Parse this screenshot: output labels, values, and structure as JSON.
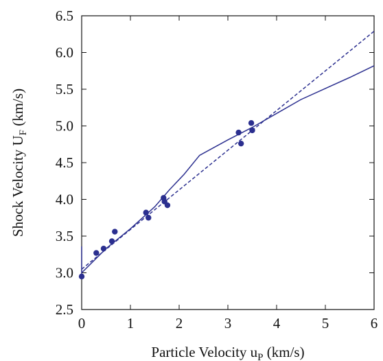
{
  "chart_data": {
    "type": "scatter",
    "title": "",
    "xlabel": "Particle Velocity u",
    "xlabel_subscript": "P",
    "xlabel_suffix": " (km/s)",
    "ylabel": "Shock Velocity U",
    "ylabel_subscript": "F",
    "ylabel_suffix": " (km/s)",
    "xlim": [
      0,
      6
    ],
    "ylim": [
      2.5,
      6.5
    ],
    "x_ticks": [
      0,
      1,
      2,
      3,
      4,
      5,
      6
    ],
    "x_tick_labels": [
      "0",
      "1",
      "2",
      "3",
      "4",
      "5",
      "6"
    ],
    "y_ticks": [
      2.5,
      3.0,
      3.5,
      4.0,
      4.5,
      5.0,
      5.5,
      6.0,
      6.5
    ],
    "y_tick_labels": [
      "2.5",
      "3.0",
      "3.5",
      "4.0",
      "4.5",
      "5.0",
      "5.5",
      "6.0",
      "6.5"
    ],
    "grid": false,
    "color": "#2b2f8f",
    "series": [
      {
        "kind": "points",
        "points": [
          [
            0.0,
            2.95
          ],
          [
            0.3,
            3.27
          ],
          [
            0.45,
            3.33
          ],
          [
            0.62,
            3.43
          ],
          [
            0.68,
            3.56
          ],
          [
            1.32,
            3.82
          ],
          [
            1.37,
            3.75
          ],
          [
            1.68,
            4.02
          ],
          [
            1.7,
            3.97
          ],
          [
            1.76,
            3.92
          ],
          [
            3.22,
            4.91
          ],
          [
            3.27,
            4.76
          ],
          [
            3.48,
            5.04
          ],
          [
            3.5,
            4.94
          ]
        ]
      },
      {
        "kind": "solid-line",
        "points": [
          [
            0.0,
            3.36
          ],
          [
            0.0,
            3.0
          ],
          [
            0.5,
            3.33
          ],
          [
            1.0,
            3.6
          ],
          [
            1.5,
            3.9
          ],
          [
            1.8,
            4.13
          ],
          [
            2.1,
            4.34
          ],
          [
            2.42,
            4.6
          ],
          [
            3.0,
            4.81
          ],
          [
            3.5,
            4.98
          ],
          [
            4.0,
            5.17
          ],
          [
            4.5,
            5.36
          ],
          [
            5.0,
            5.51
          ],
          [
            5.5,
            5.66
          ],
          [
            6.0,
            5.82
          ]
        ]
      },
      {
        "kind": "dashed-line",
        "points": [
          [
            0.0,
            3.05
          ],
          [
            6.0,
            6.29
          ]
        ]
      }
    ]
  }
}
